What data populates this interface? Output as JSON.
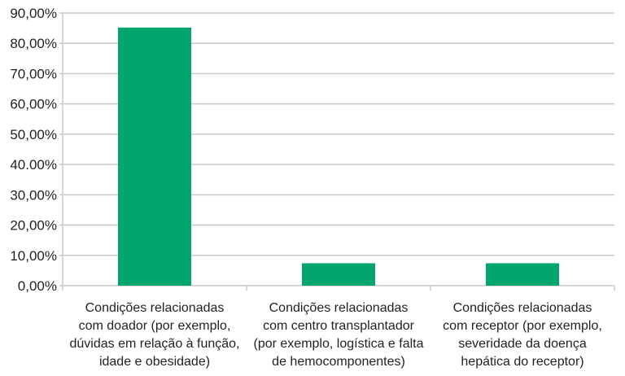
{
  "chart_data": {
    "type": "bar",
    "title": "",
    "xlabel": "",
    "ylabel": "",
    "ylim": [
      0,
      90
    ],
    "grid": true,
    "yticks": [
      {
        "value": 0,
        "label": "0,00%"
      },
      {
        "value": 10,
        "label": "10,00%"
      },
      {
        "value": 20,
        "label": "20,00%"
      },
      {
        "value": 30,
        "label": "30,00%"
      },
      {
        "value": 40,
        "label": "40.00%"
      },
      {
        "value": 50,
        "label": "50,00%"
      },
      {
        "value": 60,
        "label": "60,00%"
      },
      {
        "value": 70,
        "label": "70,00%"
      },
      {
        "value": 80,
        "label": "80,00%"
      },
      {
        "value": 90,
        "label": "90,00%"
      }
    ],
    "categories": [
      [
        "Condições relacionadas",
        "com doador (por exemplo,",
        "dúvidas em relação à função,",
        "idade e obesidade)"
      ],
      [
        "Condições relacionadas",
        "com centro transplantador",
        "(por exemplo, logística e falta",
        "de hemocomponentes)"
      ],
      [
        "Condições relacionadas",
        "com receptor (por exemplo,",
        "severidade da doença",
        "hepática do receptor)"
      ]
    ],
    "values": [
      85.2,
      7.4,
      7.4
    ],
    "bar_color": "#00a66b",
    "grid_color": "#c8c9cb"
  }
}
